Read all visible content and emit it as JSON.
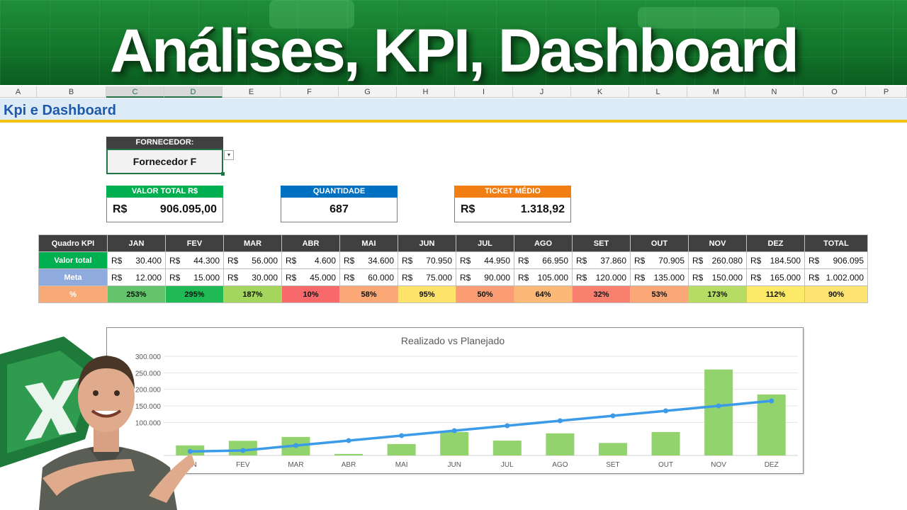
{
  "banner": {
    "title": "Análises, KPI, Dashboard"
  },
  "columns": [
    "A",
    "B",
    "C",
    "D",
    "E",
    "F",
    "G",
    "H",
    "I",
    "J",
    "K",
    "L",
    "M",
    "N",
    "O",
    "P"
  ],
  "sheet": {
    "title": "Kpi e Dashboard"
  },
  "supplier": {
    "label": "FORNECEDOR:",
    "value": "Fornecedor F",
    "dropdown_glyph": "▾"
  },
  "kpis": {
    "total": {
      "label": "VALOR TOTAL R$",
      "currency": "R$",
      "value": "906.095,00",
      "color": "#00b050"
    },
    "quantity": {
      "label": "QUANTIDADE",
      "value": "687",
      "color": "#0070c0"
    },
    "ticket": {
      "label": "TICKET MÉDIO",
      "currency": "R$",
      "value": "1.318,92",
      "color": "#f07e12"
    }
  },
  "table": {
    "corner": "Quadro KPI",
    "months": [
      "JAN",
      "FEV",
      "MAR",
      "ABR",
      "MAI",
      "JUN",
      "JUL",
      "AGO",
      "SET",
      "OUT",
      "NOV",
      "DEZ",
      "TOTAL"
    ],
    "currency": "R$",
    "valor": {
      "label": "Valor total",
      "color": "#00b050",
      "values": [
        "30.400",
        "44.300",
        "56.000",
        "4.600",
        "34.600",
        "70.950",
        "44.950",
        "66.950",
        "37.860",
        "70.905",
        "260.080",
        "184.500",
        "906.095"
      ]
    },
    "meta": {
      "label": "Meta",
      "color": "#8faadc",
      "values": [
        "12.000",
        "15.000",
        "30.000",
        "45.000",
        "60.000",
        "75.000",
        "90.000",
        "105.000",
        "120.000",
        "135.000",
        "150.000",
        "165.000",
        "1.002.000"
      ]
    },
    "pct": {
      "label": "%",
      "color": "#f8a978",
      "values": [
        "253%",
        "295%",
        "187%",
        "10%",
        "58%",
        "95%",
        "50%",
        "64%",
        "32%",
        "53%",
        "173%",
        "112%",
        "90%"
      ],
      "colors": [
        "#63c46b",
        "#1fba55",
        "#a4d65e",
        "#f8696b",
        "#fba776",
        "#fde36a",
        "#fb9d74",
        "#fcb877",
        "#f9806e",
        "#fba776",
        "#b6dc63",
        "#fbe967",
        "#fde470"
      ]
    }
  },
  "chart_data": {
    "type": "bar",
    "title": "Realizado vs Planejado",
    "categories": [
      "JAN",
      "FEV",
      "MAR",
      "ABR",
      "MAI",
      "JUN",
      "JUL",
      "AGO",
      "SET",
      "OUT",
      "NOV",
      "DEZ"
    ],
    "series": [
      {
        "values": [
          30400,
          44300,
          56000,
          4600,
          34600,
          70950,
          44950,
          66950,
          37860,
          70905,
          260080,
          184500
        ],
        "kind": "bar",
        "color": "#92d36e"
      },
      {
        "values": [
          12000,
          15000,
          30000,
          45000,
          60000,
          75000,
          90000,
          105000,
          120000,
          135000,
          150000,
          165000
        ],
        "kind": "line",
        "color": "#3c9be8"
      }
    ],
    "yticks": [
      "300.000",
      "250.000",
      "200.000",
      "150.000",
      "100.000"
    ],
    "ylim": [
      0,
      300000
    ],
    "grid": true
  }
}
